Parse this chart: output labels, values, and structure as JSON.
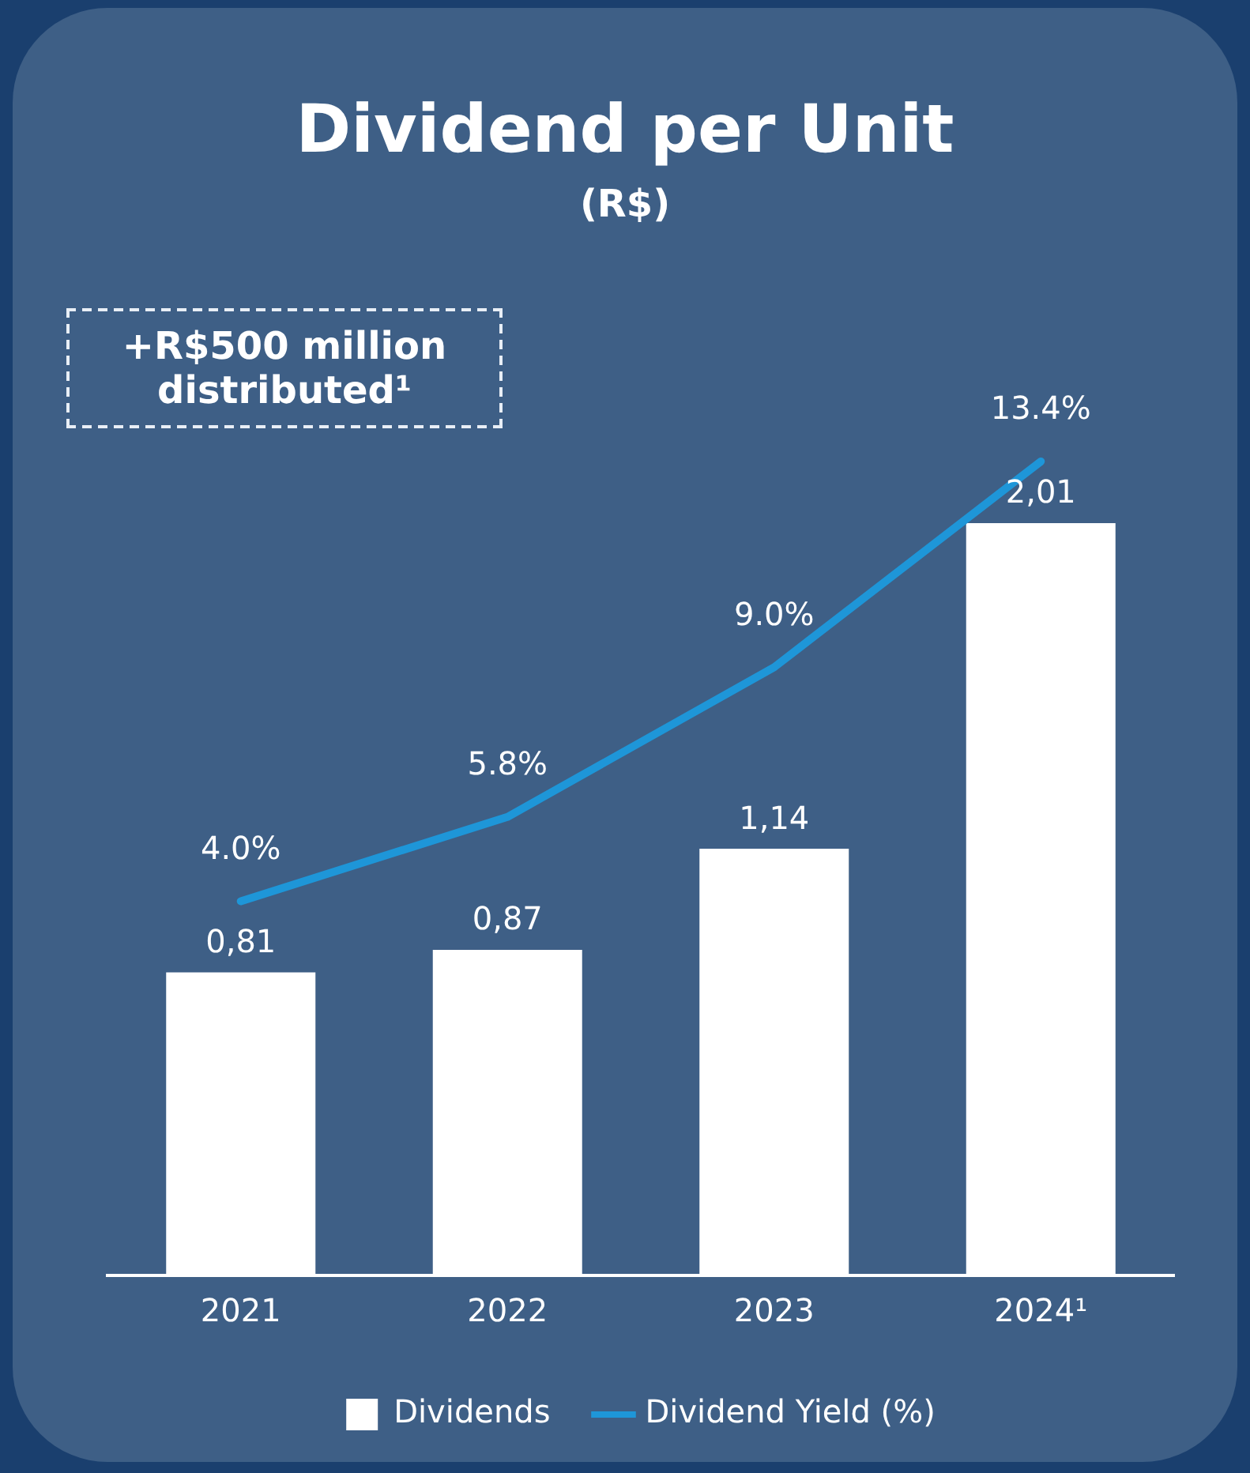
{
  "chart_data": {
    "type": "bar",
    "title": "Dividend per Unit",
    "subtitle": "(R$)",
    "annotations": [
      "+R$500 million distributed¹"
    ],
    "categories": [
      "2021",
      "2022",
      "2023",
      "2024¹"
    ],
    "legend": "bottom",
    "marker": "none",
    "series": [
      {
        "name": "Dividends",
        "color": "#ffffff",
        "values": [
          0.81,
          0.87,
          1.14,
          2.01
        ],
        "value_labels": [
          "0,81",
          "0,87",
          "1,14",
          "2,01"
        ]
      },
      {
        "name": "Dividend Yield (%)",
        "type": "line",
        "axis": "y2",
        "color": "#1e96d8",
        "values": [
          4.0,
          5.8,
          9.0,
          13.4
        ],
        "value_labels": [
          "4.0%",
          "5.8%",
          "9.0%",
          "13.4%"
        ]
      }
    ]
  }
}
